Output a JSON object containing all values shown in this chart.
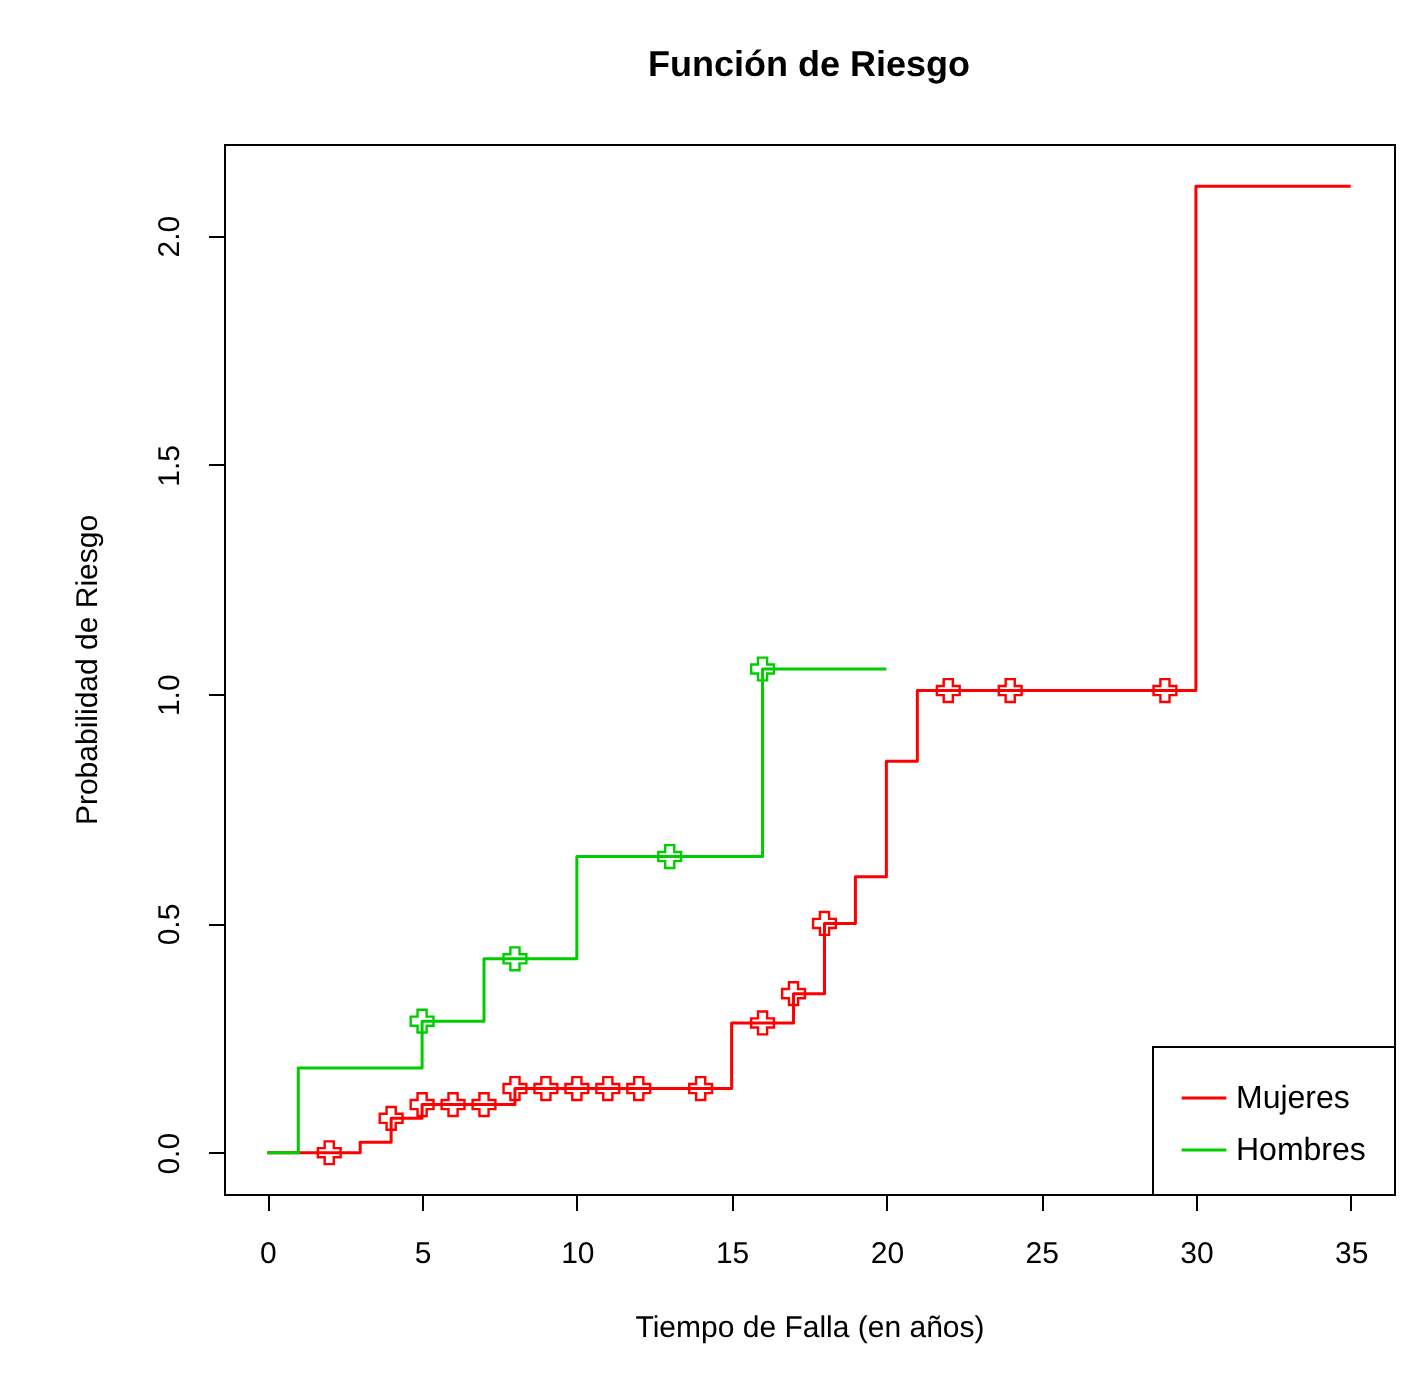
{
  "chart_data": {
    "type": "step",
    "title": "Función de Riesgo",
    "xlabel": "Tiempo de Falla (en años)",
    "ylabel": "Probabilidad de Riesgo",
    "xlim": [
      -1.4,
      36.4
    ],
    "xticks": [
      0,
      5,
      10,
      15,
      20,
      25,
      30,
      35
    ],
    "ylim": [
      -0.09,
      2.2
    ],
    "yticks": [
      {
        "value": 0,
        "label": "0.0"
      },
      0.5,
      {
        "value": 1,
        "label": "1.0"
      },
      1.5,
      {
        "value": 2,
        "label": "2.0"
      }
    ],
    "grid": false,
    "legend": "bottom right",
    "series": [
      {
        "name": "Mujeres",
        "color": "#ff0000",
        "x": [
          0,
          3,
          4,
          5,
          8,
          15,
          17,
          18,
          19,
          20,
          21,
          30,
          35
        ],
        "values": [
          0,
          0.023,
          0.075,
          0.105,
          0.14,
          0.283,
          0.347,
          0.5,
          0.602,
          0.854,
          1.008,
          2.108,
          2.108
        ]
      },
      {
        "name": "Hombres",
        "color": "#00cd00",
        "x": [
          0,
          1,
          5,
          7,
          10,
          16,
          20
        ],
        "values": [
          0,
          0.185,
          0.287,
          0.423,
          0.646,
          1.055,
          1.055
        ]
      },
      {
        "type": "scatter",
        "marker": "cross",
        "color": "#ff0000",
        "x": [
          2,
          4,
          5,
          6,
          7,
          8,
          9,
          10,
          11,
          12,
          14,
          16,
          17,
          18,
          22,
          24,
          29
        ],
        "values": [
          0,
          0.075,
          0.105,
          0.105,
          0.105,
          0.14,
          0.14,
          0.14,
          0.14,
          0.14,
          0.14,
          0.283,
          0.347,
          0.5,
          1.008,
          1.008,
          1.008
        ]
      },
      {
        "type": "scatter",
        "marker": "cross",
        "color": "#00cd00",
        "x": [
          5,
          8,
          13,
          16
        ],
        "values": [
          0.287,
          0.423,
          0.646,
          1.055
        ]
      }
    ]
  }
}
